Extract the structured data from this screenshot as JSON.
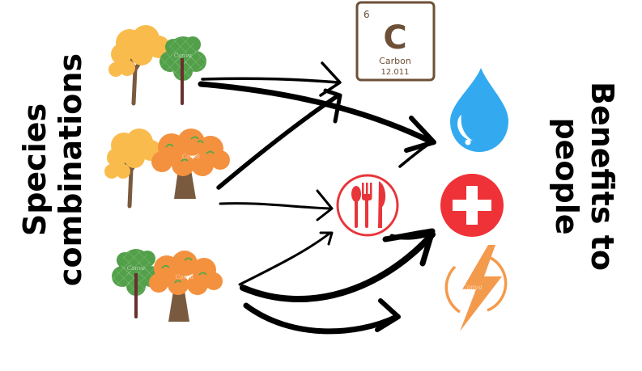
{
  "left_label": {
    "line1": "Species",
    "line2": "combinations"
  },
  "right_label": {
    "line1": "Benefits to",
    "line2": "people"
  },
  "carbon_tile": {
    "number": "6",
    "symbol": "C",
    "name": "Carbon",
    "mass": "12.011"
  },
  "watermark": "Canva",
  "colors": {
    "yellow_tree": "#f9bc4c",
    "green_tree": "#52a049",
    "orange_tree": "#f4913f",
    "trunk": "#7a5a3e",
    "water": "#33aaf0",
    "food": "#e8353a",
    "health": "#ee3238",
    "energy": "#f49a4c",
    "carbon_border": "#6d5037"
  },
  "icons": [
    "yellow-tree-icon",
    "green-tree-icon",
    "orange-tree-icon",
    "carbon-icon",
    "water-drop-icon",
    "food-icon",
    "health-cross-icon",
    "energy-bolt-icon"
  ]
}
